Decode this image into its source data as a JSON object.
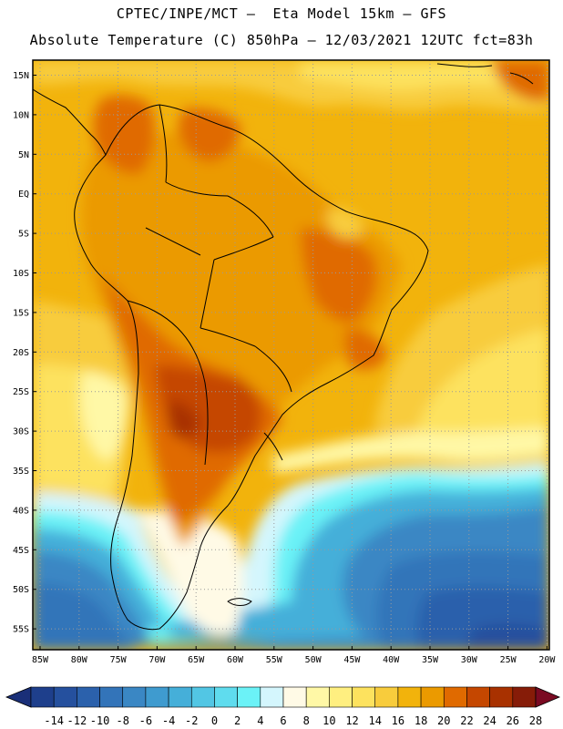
{
  "header": {
    "title_line1": "CPTEC/INPE/MCT –  Eta Model 15km – GFS",
    "title_line2": "Absolute Temperature (C) 850hPa – 12/03/2021 12UTC fct=83h"
  },
  "map": {
    "lat_labels": [
      "15N",
      "10N",
      "5N",
      "EQ",
      "5S",
      "10S",
      "15S",
      "20S",
      "25S",
      "30S",
      "35S",
      "40S",
      "45S",
      "50S",
      "55S"
    ],
    "lon_labels": [
      "85W",
      "80W",
      "75W",
      "70W",
      "65W",
      "60W",
      "55W",
      "50W",
      "45W",
      "40W",
      "35W",
      "30W",
      "25W",
      "20W"
    ]
  },
  "colorbar": {
    "labels": [
      "-14",
      "-12",
      "-10",
      "-8",
      "-6",
      "-4",
      "-2",
      "0",
      "2",
      "4",
      "6",
      "8",
      "10",
      "12",
      "14",
      "16",
      "18",
      "20",
      "22",
      "24",
      "26",
      "28"
    ],
    "colors": [
      "#1e3f8c",
      "#25509e",
      "#2b61ac",
      "#3374b9",
      "#3a87c4",
      "#3f9bcf",
      "#45afd9",
      "#52c6e4",
      "#5fdcee",
      "#6bf2f7",
      "#d4f6fd",
      "#fffae6",
      "#fff8a6",
      "#ffef80",
      "#fde25e",
      "#f8cc3c",
      "#f2b30c",
      "#eb9a00",
      "#e06a00",
      "#c54700",
      "#a83100",
      "#861c08"
    ],
    "arrow_left_color": "#1a2f78",
    "arrow_right_color": "#7a0a22"
  }
}
